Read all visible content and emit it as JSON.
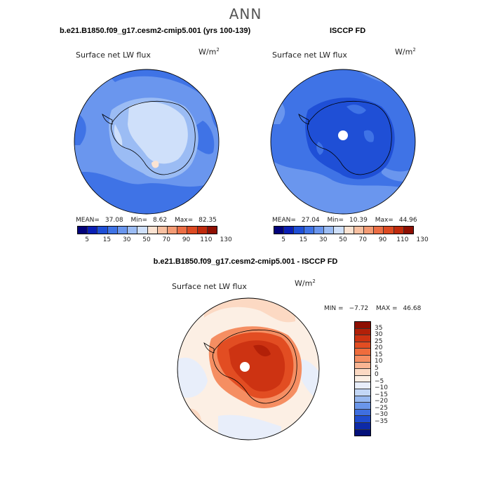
{
  "page_title": "ANN",
  "panels": [
    {
      "title": "b.e21.B1850.f09_g17.cesm2-cmip5.001 (yrs 100-139)",
      "variable": "Surface net LW flux",
      "units_base": "W/m",
      "units_exp": "2",
      "mean_label": "MEAN=",
      "mean": "37.08",
      "min_label": "Min=",
      "min": "8.62",
      "max_label": "Max=",
      "max": "82.35"
    },
    {
      "title": "ISCCP FD",
      "variable": "Surface net LW flux",
      "units_base": "W/m",
      "units_exp": "2",
      "mean_label": "MEAN=",
      "mean": "27.04",
      "min_label": "Min=",
      "min": "10.39",
      "max_label": "Max=",
      "max": "44.96"
    }
  ],
  "abs_colorbar": {
    "colors": [
      "#02027a",
      "#0a1fb5",
      "#1f4fd6",
      "#3f73e6",
      "#6a96ee",
      "#9bbcf4",
      "#cfe0fa",
      "#fbe3d2",
      "#f8c0a1",
      "#f49b74",
      "#ec6e45",
      "#dd4a22",
      "#c02a0c",
      "#8e0f02"
    ],
    "ticks": [
      "5",
      "15",
      "30",
      "50",
      "70",
      "90",
      "110",
      "130"
    ]
  },
  "diff_panel": {
    "title": "b.e21.B1850.f09_g17.cesm2-cmip5.001 - ISCCP FD",
    "variable": "Surface net LW flux",
    "units_base": "W/m",
    "units_exp": "2",
    "min_label": "MIN =",
    "min": "−7.72",
    "max_label": "MAX =",
    "max": "46.68"
  },
  "diff_colorbar": {
    "colors": [
      "#8e0f02",
      "#b22008",
      "#cd3312",
      "#e24d22",
      "#ef6c3c",
      "#f58e62",
      "#f9b593",
      "#fcd9c3",
      "#fcefe4",
      "#e8eefa",
      "#c3d7f6",
      "#97b8f0",
      "#6a96ea",
      "#3f6fe0",
      "#1f4ccf",
      "#0d2aa8",
      "#03107a"
    ],
    "ticks": [
      "35",
      "30",
      "25",
      "20",
      "15",
      "10",
      "5",
      "0",
      "−5",
      "−10",
      "−15",
      "−20",
      "−25",
      "−30",
      "−35"
    ]
  }
}
